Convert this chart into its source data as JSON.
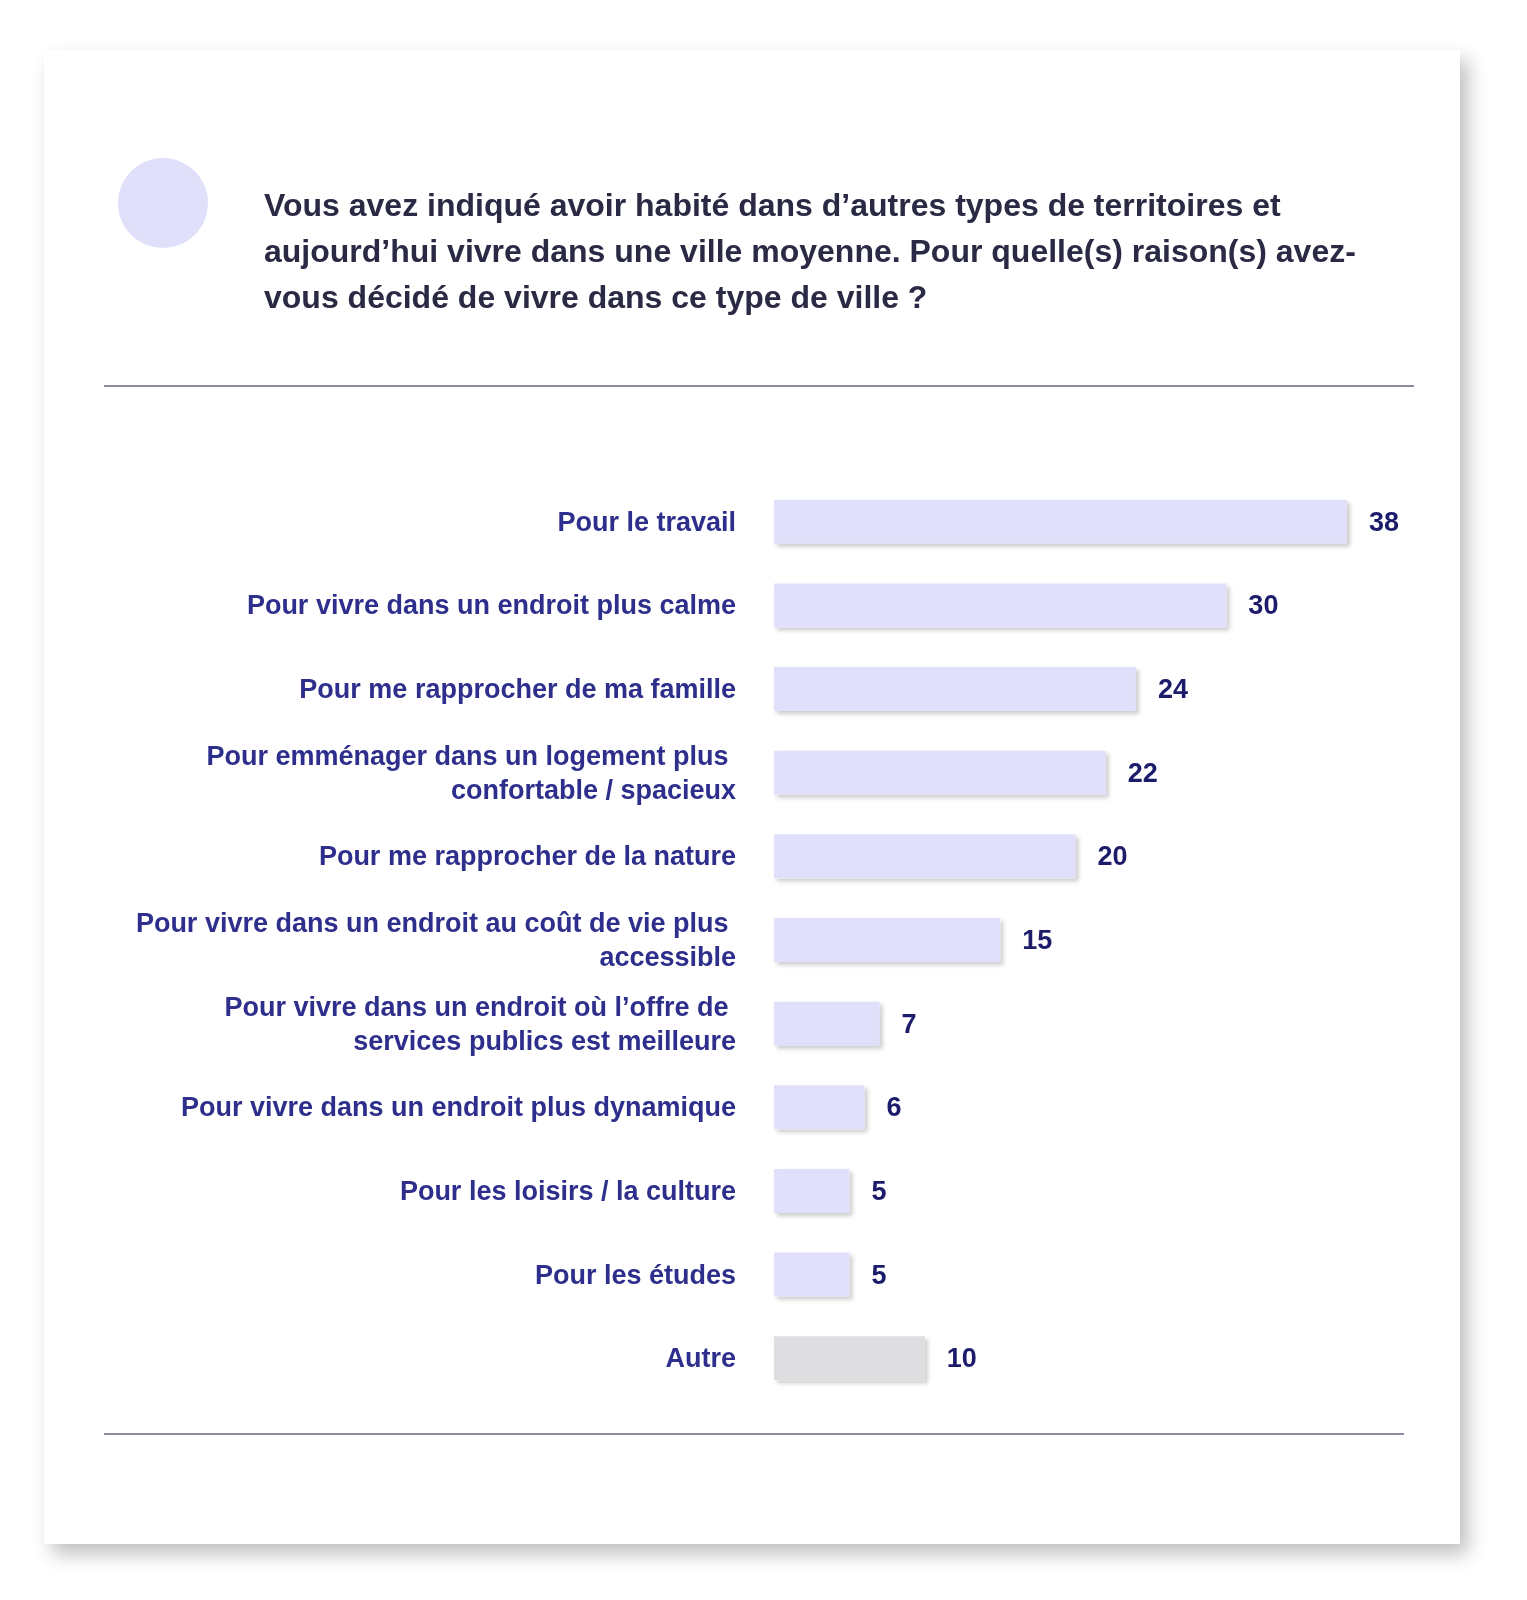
{
  "chart_data": {
    "type": "bar",
    "orientation": "horizontal",
    "title": "Vous avez indiqué avoir habité dans d’autres types de territoires et aujourd’hui vivre dans une ville moyenne. Pour quelle(s) raison(s) avez-vous décidé de vivre dans ce type de ville ?",
    "categories": [
      "Pour le travail",
      "Pour vivre dans un endroit plus calme",
      "Pour me rapprocher de ma famille",
      "Pour emménager dans un logement plus confortable / spacieux",
      "Pour me rapprocher de la nature",
      "Pour vivre dans un endroit au coût de vie plus accessible",
      "Pour vivre dans un endroit où l’offre de services publics est meilleure",
      "Pour vivre dans un endroit plus dynamique",
      "Pour les loisirs / la culture",
      "Pour les études",
      "Autre"
    ],
    "values": [
      38,
      30,
      24,
      22,
      20,
      15,
      7,
      6,
      5,
      5,
      10
    ],
    "colors": [
      "#e0e0fb",
      "#e0e0fb",
      "#e0e0fb",
      "#e0e0fb",
      "#e0e0fb",
      "#e0e0fb",
      "#e0e0fb",
      "#e0e0fb",
      "#e0e0fb",
      "#e0e0fb",
      "#dedee0"
    ],
    "data_labels": true
  }
}
